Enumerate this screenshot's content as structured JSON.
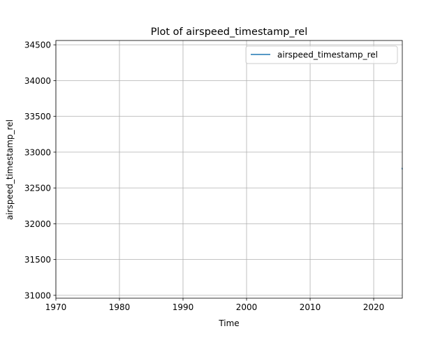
{
  "chart_data": {
    "type": "line",
    "title": "Plot of airspeed_timestamp_rel",
    "xlabel": "Time",
    "ylabel": "airspeed_timestamp_rel",
    "xlim": [
      1970,
      2024.5
    ],
    "ylim": [
      30960,
      34560
    ],
    "x_ticks": [
      1970,
      1980,
      1990,
      2000,
      2010,
      2020
    ],
    "y_ticks": [
      31000,
      31500,
      32000,
      32500,
      33000,
      33500,
      34000,
      34500
    ],
    "grid": true,
    "legend_position": "top-right",
    "series": [
      {
        "name": "airspeed_timestamp_rel",
        "color": "#1f77b4",
        "x": [
          2024.45,
          2024.5
        ],
        "y": [
          32780,
          32760
        ]
      }
    ]
  }
}
